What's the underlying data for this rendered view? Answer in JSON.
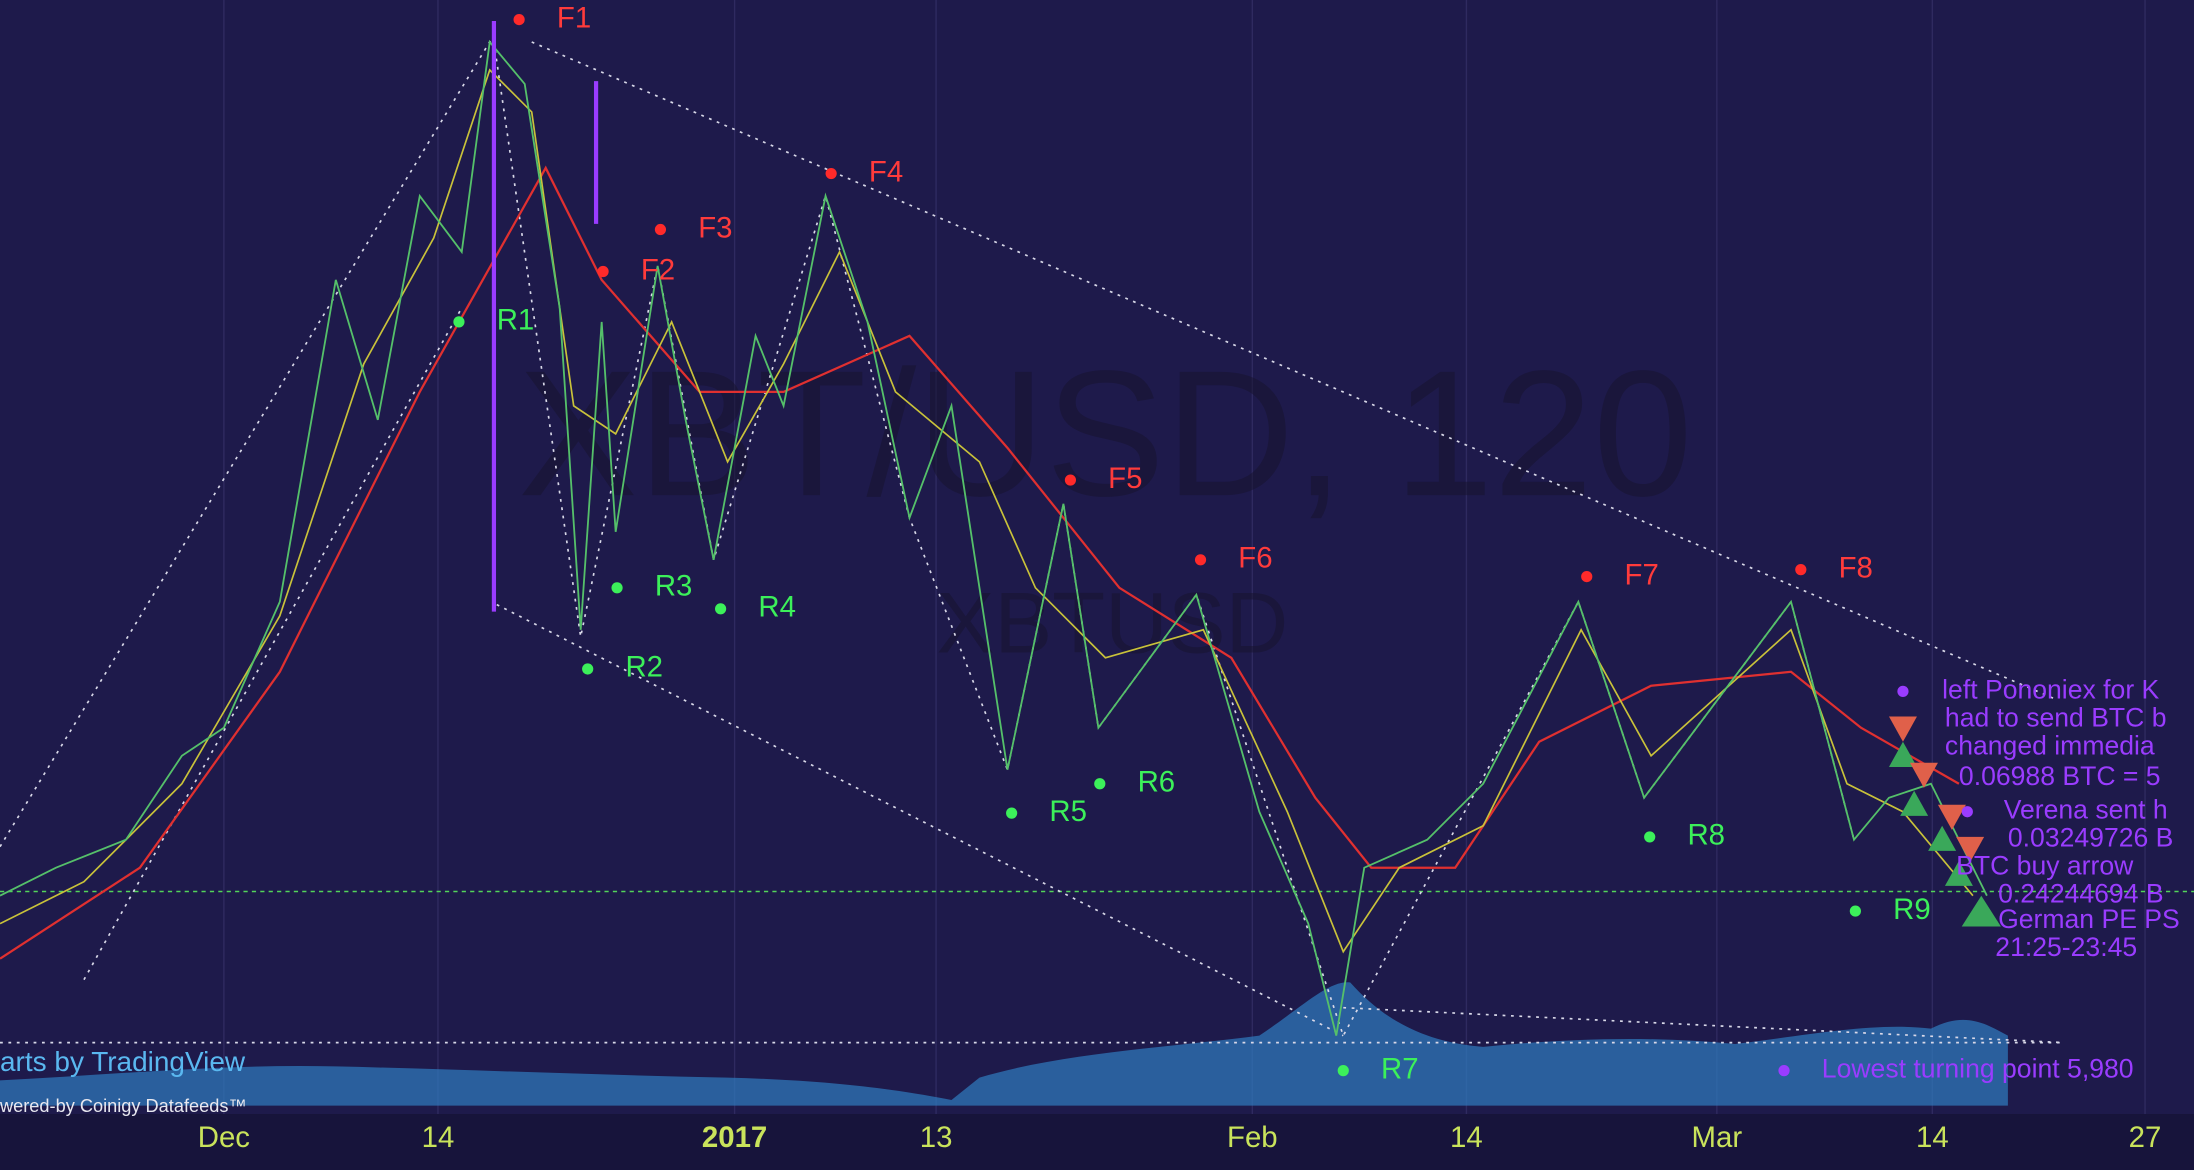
{
  "watermark": {
    "title": "XBT/USD, 120",
    "symbol": "XBTUSD"
  },
  "x_axis": {
    "labels": [
      "Dec",
      "14",
      "2017",
      "13",
      "Feb",
      "14",
      "Mar",
      "14",
      "27"
    ]
  },
  "peaks": [
    "F1",
    "F2",
    "F3",
    "F4",
    "F5",
    "F6",
    "F7",
    "F8"
  ],
  "troughs": [
    "R1",
    "R2",
    "R3",
    "R4",
    "R5",
    "R6",
    "R7",
    "R8",
    "R9"
  ],
  "annotations": [
    "left Pononiex for K",
    "had to send BTC b",
    "changed immedia",
    "0.06988 BTC = 5",
    "Verena sent h",
    "0.03249726 B",
    "BTC buy arrow",
    "0.24244694 B",
    "German PE PS",
    "21:25-23:45"
  ],
  "lowest_note": "Lowest turning point 5,980",
  "credits": {
    "tradingview": "arts by TradingView",
    "datafeed": "wered-by Coinigy Datafeeds™"
  }
}
